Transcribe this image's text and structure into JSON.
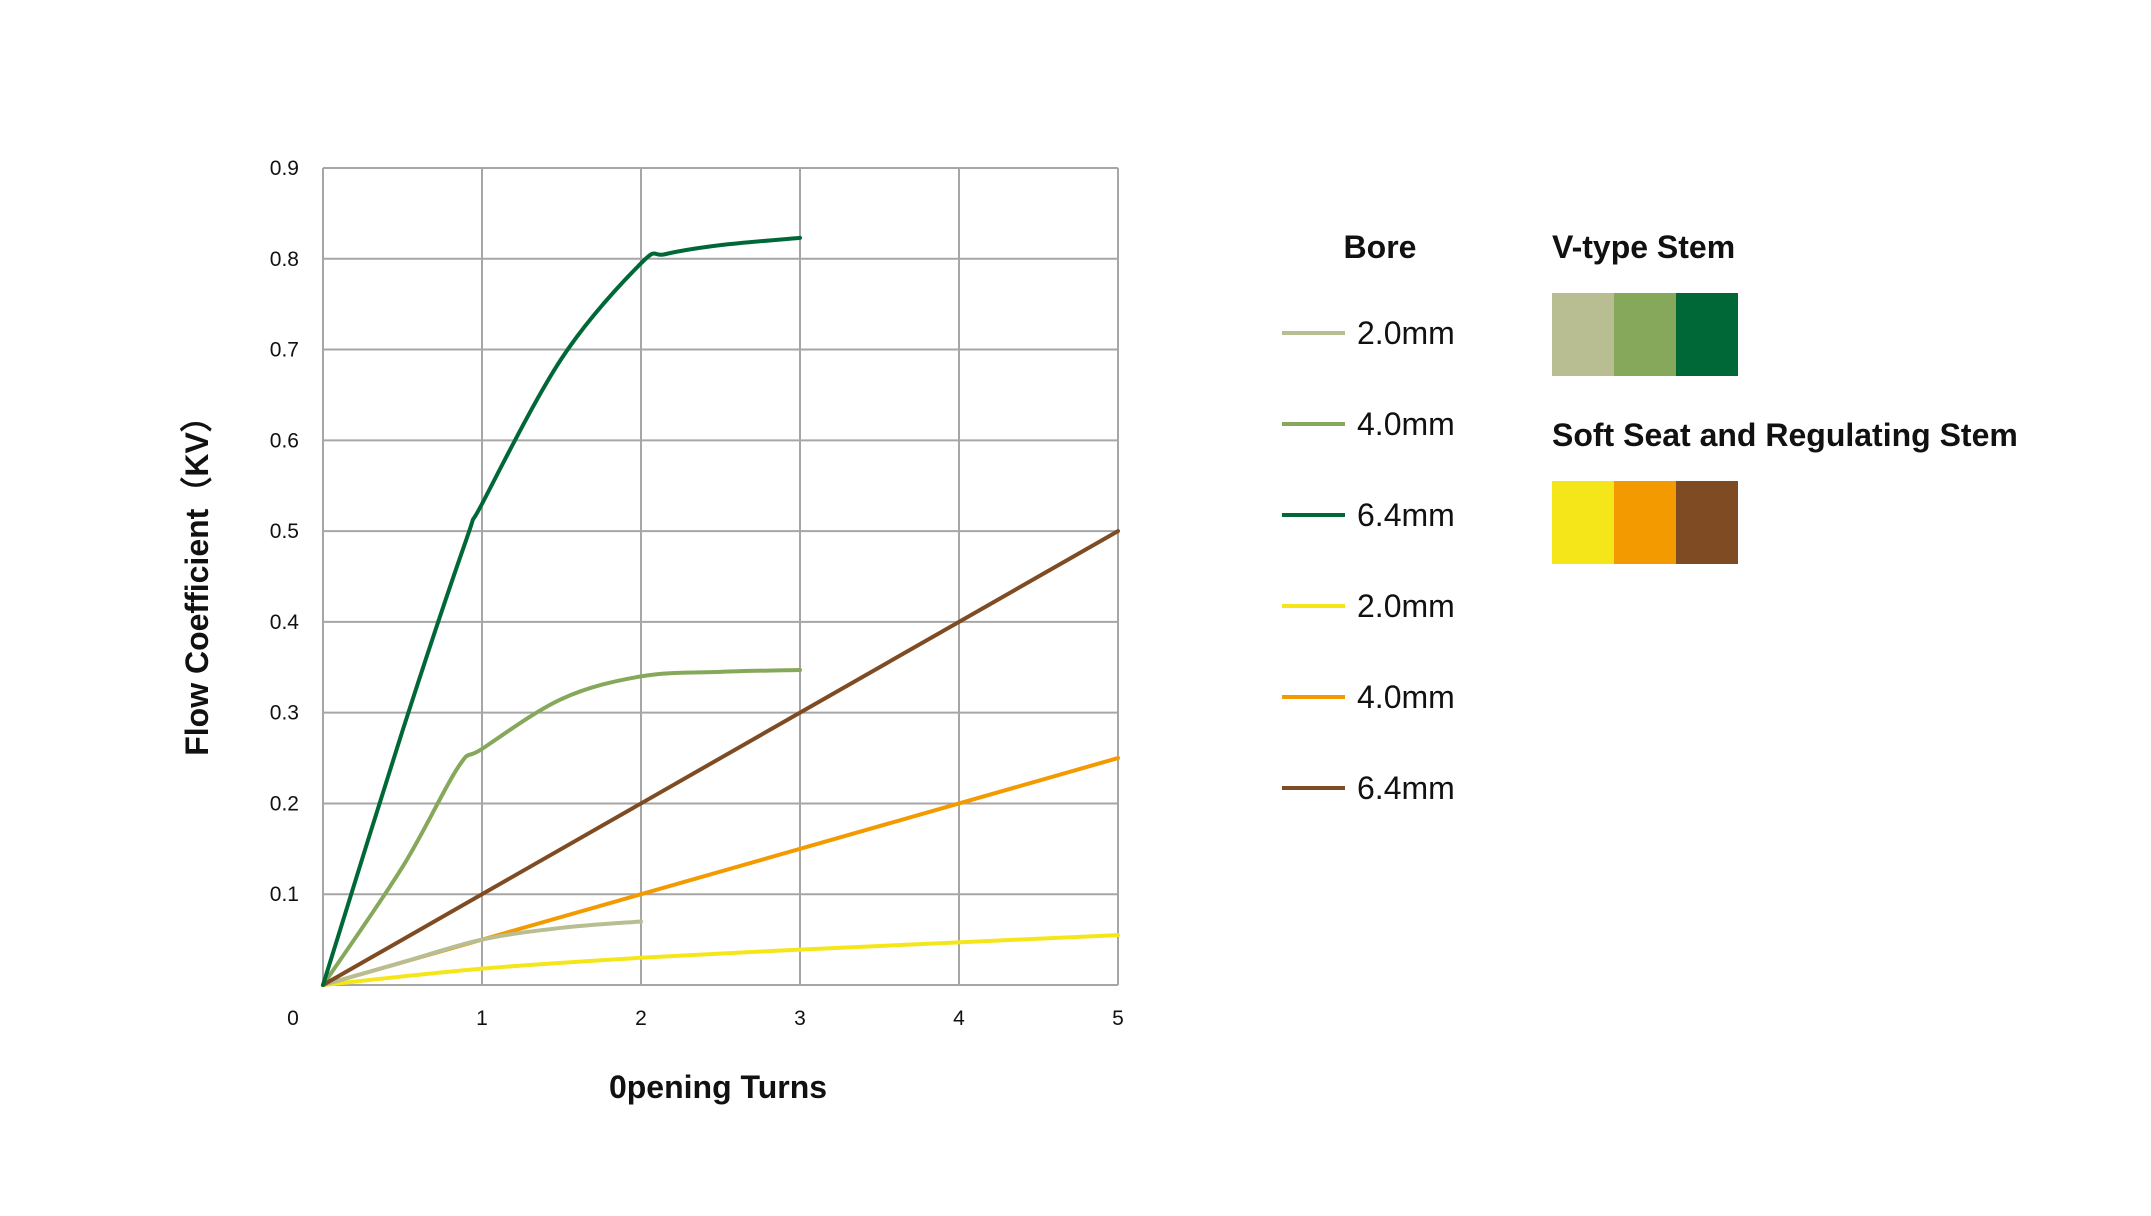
{
  "chart_data": {
    "type": "line",
    "xlabel": "0pening Turns",
    "ylabel": "Flow Coefficient（KV）",
    "xlim": [
      0,
      5
    ],
    "ylim": [
      0,
      0.9
    ],
    "x_ticks": [
      "0",
      "1",
      "2",
      "3",
      "4",
      "5"
    ],
    "y_ticks": [
      "0.1",
      "0.2",
      "0.3",
      "0.4",
      "0.5",
      "0.6",
      "0.7",
      "0.8",
      "0.9"
    ],
    "grid": true,
    "legend_title": "Bore",
    "series": [
      {
        "name": "2.0mm",
        "group": "V-type Stem",
        "color": "#b8bd92",
        "x": [
          0,
          0.5,
          1,
          1.5,
          2
        ],
        "y": [
          0,
          0.025,
          0.05,
          0.063,
          0.07
        ]
      },
      {
        "name": "4.0mm",
        "group": "V-type Stem",
        "color": "#86a85a",
        "x": [
          0,
          0.5,
          0.85,
          1,
          1.5,
          2,
          2.5,
          3
        ],
        "y": [
          0,
          0.13,
          0.24,
          0.26,
          0.315,
          0.34,
          0.345,
          0.347
        ]
      },
      {
        "name": "6.4mm",
        "group": "V-type Stem",
        "color": "#006837",
        "x": [
          0,
          0.5,
          0.9,
          1,
          1.5,
          2,
          2.15,
          2.5,
          3
        ],
        "y": [
          0,
          0.28,
          0.49,
          0.53,
          0.69,
          0.795,
          0.805,
          0.815,
          0.823
        ]
      },
      {
        "name": "2.0mm",
        "group": "Soft Seat and Regulating Stem",
        "color": "#f5e61a",
        "x": [
          0,
          1,
          2,
          3,
          4,
          5
        ],
        "y": [
          0,
          0.018,
          0.03,
          0.039,
          0.047,
          0.055
        ]
      },
      {
        "name": "4.0mm",
        "group": "Soft Seat and Regulating Stem",
        "color": "#f39a00",
        "x": [
          0,
          5
        ],
        "y": [
          0,
          0.25
        ]
      },
      {
        "name": "6.4mm",
        "group": "Soft Seat and Regulating Stem",
        "color": "#7e4b22",
        "x": [
          0,
          5
        ],
        "y": [
          0,
          0.5
        ]
      }
    ],
    "groups": [
      {
        "title": "V-type Stem",
        "colors": [
          "#b8bd92",
          "#86a85a",
          "#006837"
        ]
      },
      {
        "title": "Soft Seat and Regulating Stem",
        "colors": [
          "#f5e61a",
          "#f39a00",
          "#7e4b22"
        ]
      }
    ]
  }
}
